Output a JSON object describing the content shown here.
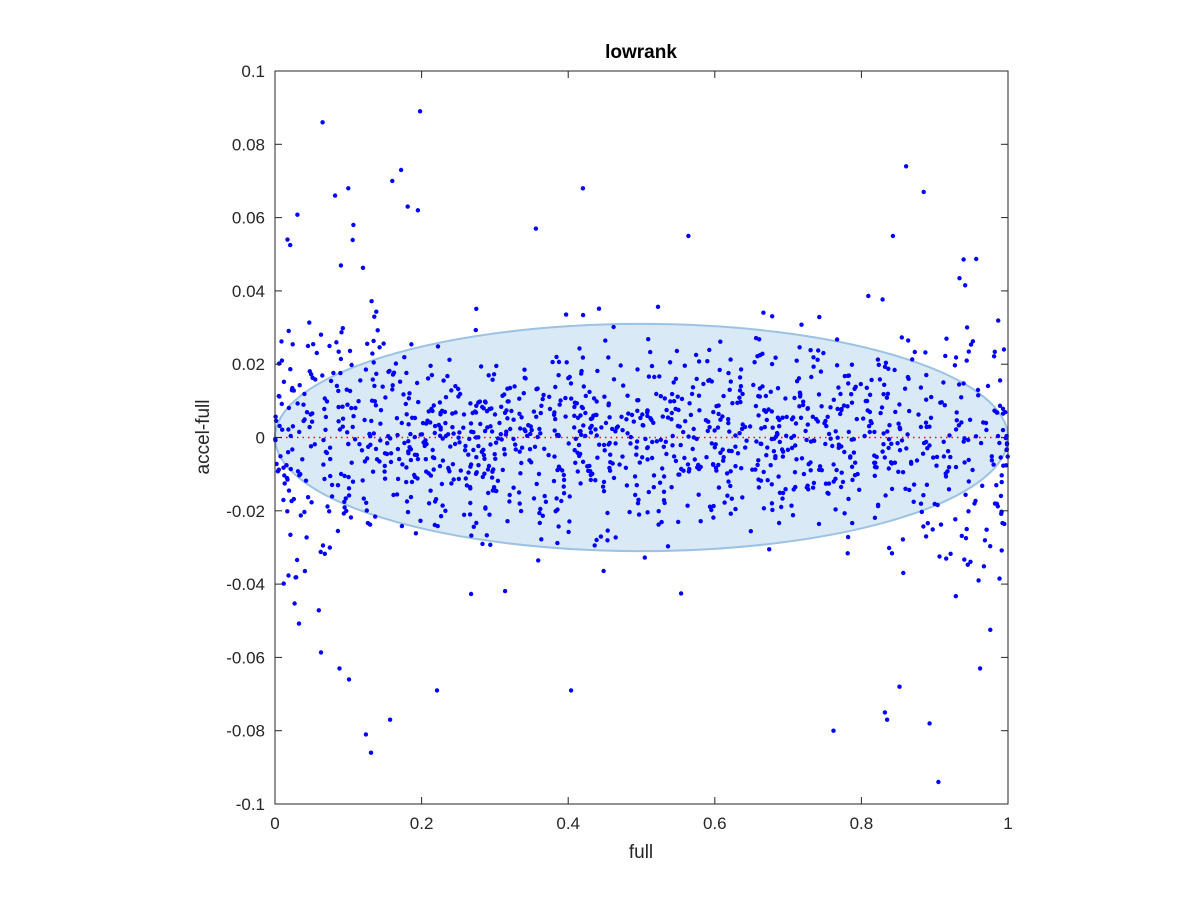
{
  "chart_data": {
    "type": "scatter",
    "title": "lowrank",
    "xlabel": "full",
    "ylabel": "accel-full",
    "xlim": [
      0,
      1
    ],
    "ylim": [
      -0.1,
      0.1
    ],
    "x_ticks": [
      0,
      0.2,
      0.4,
      0.6,
      0.8,
      1
    ],
    "x_tick_labels": [
      "0",
      "0.2",
      "0.4",
      "0.6",
      "0.8",
      "1"
    ],
    "y_ticks": [
      -0.1,
      -0.08,
      -0.06,
      -0.04,
      -0.02,
      0,
      0.02,
      0.04,
      0.06,
      0.08,
      0.1
    ],
    "y_tick_labels": [
      "-0.1",
      "-0.08",
      "-0.06",
      "-0.04",
      "-0.02",
      "0",
      "0.02",
      "0.04",
      "0.06",
      "0.08",
      "0.1"
    ],
    "grid": false,
    "reference_line": {
      "y": 0,
      "color": "#ff0000",
      "style": "dotted"
    },
    "ellipse": {
      "cx": 0.5,
      "cy": 0,
      "rx": 0.5,
      "ry": 0.031,
      "fill": "#d9e9f5",
      "stroke": "#9cc3e3"
    },
    "point_color": "#0000ff",
    "scatter_distribution": {
      "count": 1300,
      "center_band_sd": 0.013,
      "center_band_max": 0.058,
      "edge_sd": 0.026,
      "edge_region_width": 0.2
    },
    "notable_points": [
      [
        0.065,
        0.086
      ],
      [
        0.198,
        0.089
      ],
      [
        0.861,
        0.074
      ],
      [
        0.172,
        0.073
      ],
      [
        0.16,
        0.07
      ],
      [
        0.885,
        0.067
      ],
      [
        0.42,
        0.068
      ],
      [
        0.1,
        0.068
      ],
      [
        0.082,
        0.066
      ],
      [
        0.107,
        0.058
      ],
      [
        0.181,
        0.063
      ],
      [
        0.195,
        0.062
      ],
      [
        0.124,
        -0.081
      ],
      [
        0.131,
        -0.086
      ],
      [
        0.157,
        -0.077
      ],
      [
        0.101,
        -0.066
      ],
      [
        0.905,
        -0.094
      ],
      [
        0.893,
        -0.078
      ],
      [
        0.832,
        -0.075
      ],
      [
        0.835,
        -0.077
      ],
      [
        0.762,
        -0.08
      ],
      [
        0.852,
        -0.068
      ],
      [
        0.404,
        -0.069
      ],
      [
        0.221,
        -0.069
      ],
      [
        0.088,
        -0.063
      ],
      [
        0.962,
        -0.063
      ],
      [
        0.564,
        0.055
      ],
      [
        0.017,
        0.054
      ],
      [
        0.356,
        0.057
      ],
      [
        0.843,
        0.055
      ]
    ]
  }
}
